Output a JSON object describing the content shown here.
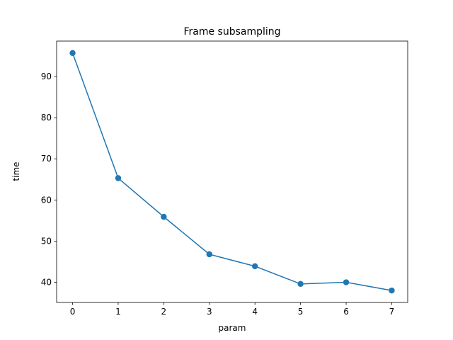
{
  "chart_data": {
    "type": "line",
    "title": "Frame subsampling",
    "xlabel": "param",
    "ylabel": "time",
    "x": [
      0,
      1,
      2,
      3,
      4,
      5,
      6,
      7
    ],
    "series": [
      {
        "values": [
          95.7,
          65.3,
          55.9,
          46.8,
          43.9,
          39.6,
          40.0,
          38.0
        ]
      }
    ],
    "xticks": [
      0,
      1,
      2,
      3,
      4,
      5,
      6,
      7
    ],
    "yticks": [
      40,
      50,
      60,
      70,
      80,
      90
    ],
    "xlim": [
      -0.35,
      7.35
    ],
    "ylim": [
      35.1,
      98.6
    ],
    "grid": false,
    "line_color": "#1f77b4",
    "marker": "circle"
  }
}
